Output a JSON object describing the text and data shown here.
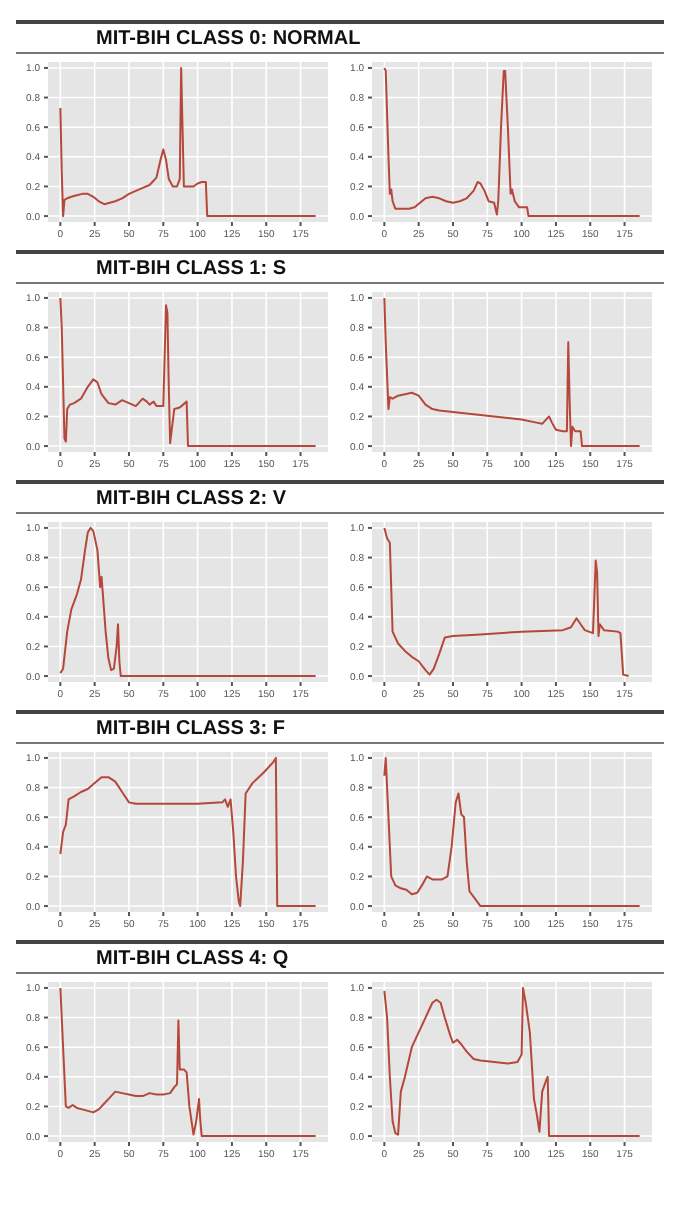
{
  "chart_data": [
    {
      "type": "line",
      "title": "MIT-BIH CLASS 0: NORMAL",
      "color": "#b5483a",
      "grid": true,
      "marker": "none",
      "xlim": [
        -9,
        195
      ],
      "ylim": [
        -0.04,
        1.04
      ],
      "xticks": [
        0,
        25,
        50,
        75,
        100,
        125,
        150,
        175
      ],
      "yticks": [
        {
          "value": 0,
          "label": "0.0"
        },
        {
          "value": 0.2,
          "label": "0.2"
        },
        {
          "value": 0.4,
          "label": "0.4"
        },
        {
          "value": 0.6,
          "label": "0.6"
        },
        {
          "value": 0.8,
          "label": "0.8"
        },
        {
          "value": 1,
          "label": "1.0"
        }
      ],
      "x": [
        0,
        1,
        2,
        3,
        5,
        8,
        12,
        16,
        20,
        24,
        28,
        32,
        36,
        40,
        45,
        50,
        55,
        60,
        65,
        70,
        73,
        75,
        77,
        79,
        82,
        85,
        87,
        88,
        89,
        90,
        93,
        97,
        100,
        103,
        106,
        107,
        186
      ],
      "values": [
        0.73,
        0.3,
        0.0,
        0.11,
        0.12,
        0.13,
        0.14,
        0.15,
        0.15,
        0.13,
        0.1,
        0.08,
        0.09,
        0.1,
        0.12,
        0.15,
        0.17,
        0.19,
        0.21,
        0.26,
        0.38,
        0.45,
        0.38,
        0.25,
        0.2,
        0.2,
        0.25,
        1.0,
        0.6,
        0.2,
        0.2,
        0.2,
        0.22,
        0.23,
        0.23,
        0.0,
        0.0
      ]
    },
    {
      "type": "line",
      "color": "#b5483a",
      "grid": true,
      "marker": "none",
      "xlim": [
        -9,
        195
      ],
      "ylim": [
        -0.04,
        1.04
      ],
      "xticks": [
        0,
        25,
        50,
        75,
        100,
        125,
        150,
        175
      ],
      "yticks": [
        {
          "value": 0,
          "label": "0.0"
        },
        {
          "value": 0.2,
          "label": "0.2"
        },
        {
          "value": 0.4,
          "label": "0.4"
        },
        {
          "value": 0.6,
          "label": "0.6"
        },
        {
          "value": 0.8,
          "label": "0.8"
        },
        {
          "value": 1,
          "label": "1.0"
        }
      ],
      "x": [
        0,
        1,
        3,
        4,
        5,
        6,
        8,
        12,
        18,
        22,
        26,
        30,
        35,
        40,
        45,
        50,
        55,
        60,
        65,
        68,
        70,
        73,
        76,
        80,
        82,
        83,
        85,
        87,
        88,
        90,
        92,
        93,
        95,
        98,
        104,
        105,
        186
      ],
      "values": [
        1.0,
        0.98,
        0.4,
        0.15,
        0.18,
        0.1,
        0.05,
        0.05,
        0.05,
        0.06,
        0.09,
        0.12,
        0.13,
        0.12,
        0.1,
        0.09,
        0.1,
        0.12,
        0.17,
        0.23,
        0.22,
        0.17,
        0.1,
        0.09,
        0.01,
        0.1,
        0.6,
        0.98,
        0.98,
        0.6,
        0.15,
        0.18,
        0.1,
        0.06,
        0.06,
        0.0,
        0.0
      ]
    },
    {
      "type": "line",
      "title": "MIT-BIH CLASS 1: S",
      "color": "#b5483a",
      "grid": true,
      "marker": "none",
      "xlim": [
        -9,
        195
      ],
      "ylim": [
        -0.04,
        1.04
      ],
      "xticks": [
        0,
        25,
        50,
        75,
        100,
        125,
        150,
        175
      ],
      "yticks": [
        {
          "value": 0,
          "label": "0.0"
        },
        {
          "value": 0.2,
          "label": "0.2"
        },
        {
          "value": 0.4,
          "label": "0.4"
        },
        {
          "value": 0.6,
          "label": "0.6"
        },
        {
          "value": 0.8,
          "label": "0.8"
        },
        {
          "value": 1,
          "label": "1.0"
        }
      ],
      "x": [
        0,
        1,
        3,
        4,
        5,
        7,
        10,
        15,
        20,
        24,
        27,
        30,
        35,
        40,
        45,
        50,
        55,
        60,
        63,
        65,
        68,
        70,
        75,
        77,
        78,
        79,
        80,
        81,
        83,
        87,
        92,
        93,
        186
      ],
      "values": [
        1.0,
        0.8,
        0.05,
        0.03,
        0.25,
        0.28,
        0.29,
        0.32,
        0.4,
        0.45,
        0.43,
        0.35,
        0.29,
        0.28,
        0.31,
        0.29,
        0.27,
        0.32,
        0.3,
        0.28,
        0.3,
        0.27,
        0.27,
        0.95,
        0.9,
        0.4,
        0.02,
        0.1,
        0.25,
        0.26,
        0.3,
        0.0,
        0.0
      ]
    },
    {
      "type": "line",
      "color": "#b5483a",
      "grid": true,
      "marker": "none",
      "xlim": [
        -9,
        195
      ],
      "ylim": [
        -0.04,
        1.04
      ],
      "xticks": [
        0,
        25,
        50,
        75,
        100,
        125,
        150,
        175
      ],
      "yticks": [
        {
          "value": 0,
          "label": "0.0"
        },
        {
          "value": 0.2,
          "label": "0.2"
        },
        {
          "value": 0.4,
          "label": "0.4"
        },
        {
          "value": 0.6,
          "label": "0.6"
        },
        {
          "value": 0.8,
          "label": "0.8"
        },
        {
          "value": 1,
          "label": "1.0"
        }
      ],
      "x": [
        0,
        1,
        3,
        4,
        6,
        10,
        15,
        20,
        25,
        30,
        35,
        40,
        50,
        60,
        70,
        80,
        90,
        100,
        110,
        115,
        120,
        122,
        125,
        130,
        133,
        134,
        135,
        136,
        137,
        139,
        143,
        144,
        186
      ],
      "values": [
        1.0,
        0.7,
        0.25,
        0.33,
        0.32,
        0.34,
        0.35,
        0.36,
        0.34,
        0.28,
        0.25,
        0.24,
        0.23,
        0.22,
        0.21,
        0.2,
        0.19,
        0.18,
        0.16,
        0.15,
        0.2,
        0.16,
        0.11,
        0.1,
        0.1,
        0.7,
        0.3,
        0.0,
        0.13,
        0.1,
        0.1,
        0.0,
        0.0
      ]
    },
    {
      "type": "line",
      "title": "MIT-BIH CLASS 2: V",
      "color": "#b5483a",
      "grid": true,
      "marker": "none",
      "xlim": [
        -9,
        195
      ],
      "ylim": [
        -0.04,
        1.04
      ],
      "xticks": [
        0,
        25,
        50,
        75,
        100,
        125,
        150,
        175
      ],
      "yticks": [
        {
          "value": 0,
          "label": "0.0"
        },
        {
          "value": 0.2,
          "label": "0.2"
        },
        {
          "value": 0.4,
          "label": "0.4"
        },
        {
          "value": 0.6,
          "label": "0.6"
        },
        {
          "value": 0.8,
          "label": "0.8"
        },
        {
          "value": 1,
          "label": "1.0"
        }
      ],
      "x": [
        0,
        2,
        5,
        8,
        12,
        15,
        18,
        20,
        22,
        24,
        27,
        29,
        30,
        31,
        33,
        35,
        37,
        39,
        41,
        42,
        43,
        44,
        186
      ],
      "values": [
        0.02,
        0.05,
        0.3,
        0.45,
        0.55,
        0.65,
        0.85,
        0.97,
        1.0,
        0.98,
        0.85,
        0.6,
        0.67,
        0.55,
        0.3,
        0.12,
        0.04,
        0.05,
        0.2,
        0.35,
        0.1,
        0.0,
        0.0
      ]
    },
    {
      "type": "line",
      "color": "#b5483a",
      "grid": true,
      "marker": "none",
      "xlim": [
        -9,
        195
      ],
      "ylim": [
        -0.04,
        1.04
      ],
      "xticks": [
        0,
        25,
        50,
        75,
        100,
        125,
        150,
        175
      ],
      "yticks": [
        {
          "value": 0,
          "label": "0.0"
        },
        {
          "value": 0.2,
          "label": "0.2"
        },
        {
          "value": 0.4,
          "label": "0.4"
        },
        {
          "value": 0.6,
          "label": "0.6"
        },
        {
          "value": 0.8,
          "label": "0.8"
        },
        {
          "value": 1,
          "label": "1.0"
        }
      ],
      "x": [
        0,
        2,
        4,
        6,
        10,
        15,
        20,
        25,
        30,
        33,
        36,
        40,
        44,
        50,
        70,
        100,
        130,
        136,
        140,
        143,
        146,
        152,
        154,
        155,
        156,
        157,
        160,
        170,
        172,
        174,
        178
      ],
      "values": [
        1.0,
        0.93,
        0.9,
        0.3,
        0.22,
        0.17,
        0.13,
        0.1,
        0.04,
        0.01,
        0.05,
        0.15,
        0.26,
        0.27,
        0.28,
        0.3,
        0.31,
        0.33,
        0.39,
        0.35,
        0.31,
        0.29,
        0.78,
        0.7,
        0.27,
        0.35,
        0.31,
        0.3,
        0.29,
        0.01,
        0.0
      ]
    },
    {
      "type": "line",
      "title": "MIT-BIH CLASS 3: F",
      "color": "#b5483a",
      "grid": true,
      "marker": "none",
      "xlim": [
        -9,
        195
      ],
      "ylim": [
        -0.04,
        1.04
      ],
      "xticks": [
        0,
        25,
        50,
        75,
        100,
        125,
        150,
        175
      ],
      "yticks": [
        {
          "value": 0,
          "label": "0.0"
        },
        {
          "value": 0.2,
          "label": "0.2"
        },
        {
          "value": 0.4,
          "label": "0.4"
        },
        {
          "value": 0.6,
          "label": "0.6"
        },
        {
          "value": 0.8,
          "label": "0.8"
        },
        {
          "value": 1,
          "label": "1.0"
        }
      ],
      "x": [
        0,
        2,
        4,
        6,
        10,
        15,
        20,
        25,
        30,
        35,
        40,
        45,
        50,
        55,
        75,
        100,
        118,
        120,
        122,
        124,
        126,
        128,
        130,
        131,
        133,
        135,
        140,
        148,
        155,
        157,
        158,
        186
      ],
      "values": [
        0.35,
        0.5,
        0.55,
        0.72,
        0.74,
        0.77,
        0.79,
        0.83,
        0.87,
        0.87,
        0.84,
        0.77,
        0.7,
        0.69,
        0.69,
        0.69,
        0.7,
        0.72,
        0.67,
        0.72,
        0.5,
        0.2,
        0.03,
        0.0,
        0.3,
        0.76,
        0.83,
        0.9,
        0.97,
        1.0,
        0.0,
        0.0
      ]
    },
    {
      "type": "line",
      "color": "#b5483a",
      "grid": true,
      "marker": "none",
      "xlim": [
        -9,
        195
      ],
      "ylim": [
        -0.04,
        1.04
      ],
      "xticks": [
        0,
        25,
        50,
        75,
        100,
        125,
        150,
        175
      ],
      "yticks": [
        {
          "value": 0,
          "label": "0.0"
        },
        {
          "value": 0.2,
          "label": "0.2"
        },
        {
          "value": 0.4,
          "label": "0.4"
        },
        {
          "value": 0.6,
          "label": "0.6"
        },
        {
          "value": 0.8,
          "label": "0.8"
        },
        {
          "value": 1,
          "label": "1.0"
        }
      ],
      "x": [
        0,
        1,
        3,
        5,
        8,
        12,
        16,
        20,
        24,
        28,
        31,
        35,
        42,
        46,
        49,
        52,
        54,
        56,
        58,
        60,
        62,
        66,
        70,
        186
      ],
      "values": [
        0.88,
        1.0,
        0.6,
        0.2,
        0.14,
        0.12,
        0.11,
        0.08,
        0.09,
        0.15,
        0.2,
        0.18,
        0.18,
        0.2,
        0.4,
        0.7,
        0.76,
        0.62,
        0.6,
        0.3,
        0.1,
        0.05,
        0.0,
        0.0
      ]
    },
    {
      "type": "line",
      "title": "MIT-BIH CLASS 4: Q",
      "color": "#b5483a",
      "grid": true,
      "marker": "none",
      "xlim": [
        -9,
        195
      ],
      "ylim": [
        -0.04,
        1.04
      ],
      "xticks": [
        0,
        25,
        50,
        75,
        100,
        125,
        150,
        175
      ],
      "yticks": [
        {
          "value": 0,
          "label": "0.0"
        },
        {
          "value": 0.2,
          "label": "0.2"
        },
        {
          "value": 0.4,
          "label": "0.4"
        },
        {
          "value": 0.6,
          "label": "0.6"
        },
        {
          "value": 0.8,
          "label": "0.8"
        },
        {
          "value": 1,
          "label": "1.0"
        }
      ],
      "x": [
        0,
        2,
        4,
        6,
        9,
        12,
        16,
        20,
        24,
        28,
        32,
        36,
        40,
        45,
        50,
        55,
        60,
        65,
        70,
        75,
        80,
        83,
        85,
        86,
        87,
        90,
        92,
        94,
        97,
        99,
        101,
        102,
        103,
        186
      ],
      "values": [
        1.0,
        0.6,
        0.2,
        0.19,
        0.21,
        0.19,
        0.18,
        0.17,
        0.16,
        0.18,
        0.22,
        0.26,
        0.3,
        0.29,
        0.28,
        0.27,
        0.27,
        0.29,
        0.28,
        0.28,
        0.29,
        0.33,
        0.35,
        0.78,
        0.45,
        0.45,
        0.43,
        0.2,
        0.01,
        0.1,
        0.25,
        0.1,
        0.0,
        0.0
      ]
    },
    {
      "type": "line",
      "color": "#b5483a",
      "grid": true,
      "marker": "none",
      "xlim": [
        -9,
        195
      ],
      "ylim": [
        -0.04,
        1.04
      ],
      "xticks": [
        0,
        25,
        50,
        75,
        100,
        125,
        150,
        175
      ],
      "yticks": [
        {
          "value": 0,
          "label": "0.0"
        },
        {
          "value": 0.2,
          "label": "0.2"
        },
        {
          "value": 0.4,
          "label": "0.4"
        },
        {
          "value": 0.6,
          "label": "0.6"
        },
        {
          "value": 0.8,
          "label": "0.8"
        },
        {
          "value": 1,
          "label": "1.0"
        }
      ],
      "x": [
        0,
        2,
        4,
        6,
        8,
        10,
        12,
        15,
        20,
        25,
        30,
        35,
        38,
        41,
        44,
        48,
        50,
        53,
        56,
        60,
        65,
        70,
        80,
        90,
        97,
        100,
        101,
        103,
        106,
        109,
        111,
        113,
        115,
        118,
        119,
        120,
        186
      ],
      "values": [
        0.98,
        0.8,
        0.4,
        0.1,
        0.02,
        0.01,
        0.3,
        0.4,
        0.6,
        0.7,
        0.8,
        0.9,
        0.92,
        0.9,
        0.8,
        0.68,
        0.63,
        0.65,
        0.62,
        0.57,
        0.52,
        0.51,
        0.5,
        0.49,
        0.5,
        0.55,
        1.0,
        0.9,
        0.7,
        0.25,
        0.15,
        0.03,
        0.3,
        0.38,
        0.4,
        0.0,
        0.0
      ]
    }
  ]
}
